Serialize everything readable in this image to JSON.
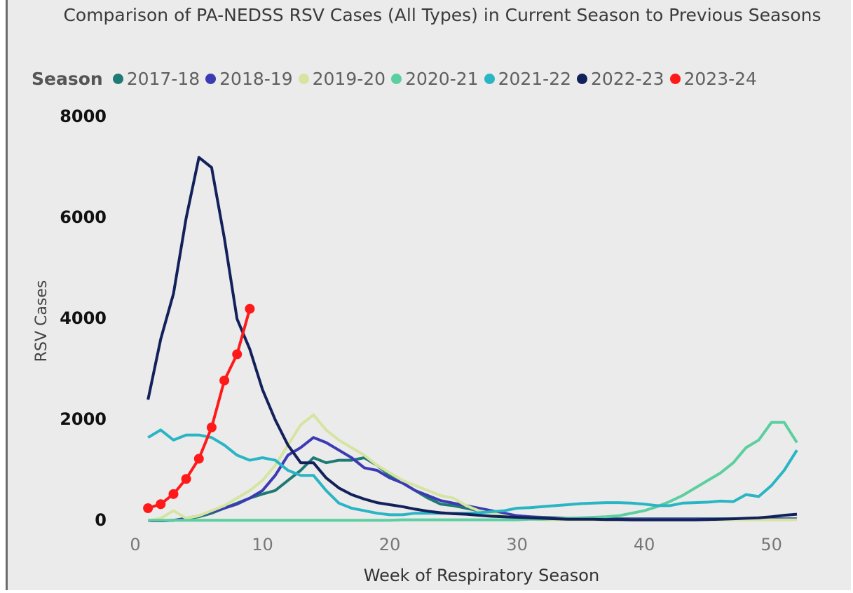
{
  "chart_data": {
    "type": "line",
    "title": "Comparison of PA-NEDSS RSV Cases (All Types) in Current Season to Previous Seasons",
    "legend_title": "Season",
    "x_label": "Week of Respiratory Season",
    "y_label": "RSV Cases",
    "xlim": [
      0,
      52
    ],
    "ylim": [
      0,
      8000
    ],
    "xticks": [
      0,
      10,
      20,
      30,
      40,
      50
    ],
    "yticks": [
      0,
      2000,
      4000,
      6000,
      8000
    ],
    "grid": false,
    "x": [
      1,
      2,
      3,
      4,
      5,
      6,
      7,
      8,
      9,
      10,
      11,
      12,
      13,
      14,
      15,
      16,
      17,
      18,
      19,
      20,
      21,
      22,
      23,
      24,
      25,
      26,
      27,
      28,
      29,
      30,
      31,
      32,
      33,
      34,
      35,
      36,
      37,
      38,
      39,
      40,
      41,
      42,
      43,
      44,
      45,
      46,
      47,
      48,
      49,
      50,
      51,
      52
    ],
    "series": [
      {
        "name": "2017-18",
        "color": "#1f7a74",
        "values": [
          0,
          0,
          10,
          40,
          80,
          150,
          250,
          350,
          450,
          530,
          600,
          800,
          1000,
          1250,
          1150,
          1200,
          1200,
          1250,
          1100,
          900,
          750,
          600,
          450,
          330,
          300,
          250,
          200,
          160,
          130,
          100,
          80,
          70,
          60,
          50,
          50,
          40,
          40,
          40,
          40,
          40,
          40,
          40,
          40,
          40,
          40,
          40,
          40,
          40,
          40,
          40,
          40,
          40
        ]
      },
      {
        "name": "2018-19",
        "color": "#3b3bb3",
        "values": [
          0,
          0,
          10,
          50,
          100,
          180,
          250,
          330,
          450,
          600,
          900,
          1300,
          1450,
          1650,
          1550,
          1400,
          1250,
          1050,
          1000,
          850,
          750,
          600,
          500,
          400,
          350,
          300,
          250,
          200,
          150,
          100,
          80,
          60,
          50,
          40,
          30,
          30,
          30,
          30,
          30,
          30,
          30,
          30,
          30,
          30,
          30,
          30,
          30,
          30,
          30,
          30,
          30,
          30
        ]
      },
      {
        "name": "2019-20",
        "color": "#d6e4a2",
        "values": [
          0,
          50,
          200,
          50,
          100,
          200,
          300,
          450,
          600,
          800,
          1100,
          1500,
          1900,
          2100,
          1800,
          1600,
          1450,
          1300,
          1100,
          950,
          800,
          700,
          600,
          500,
          450,
          300,
          200,
          150,
          100,
          50,
          30,
          20,
          20,
          20,
          20,
          20,
          20,
          20,
          20,
          20,
          20,
          20,
          20,
          20,
          20,
          20,
          20,
          20,
          20,
          20,
          20,
          20
        ]
      },
      {
        "name": "2020-21",
        "color": "#5ccfa0",
        "values": [
          10,
          10,
          10,
          10,
          10,
          10,
          10,
          10,
          10,
          10,
          10,
          10,
          10,
          10,
          10,
          10,
          10,
          10,
          10,
          10,
          20,
          20,
          20,
          20,
          20,
          20,
          20,
          20,
          20,
          20,
          30,
          30,
          40,
          50,
          60,
          70,
          80,
          100,
          150,
          200,
          280,
          380,
          500,
          650,
          800,
          950,
          1150,
          1450,
          1600,
          1950,
          1950,
          1550
        ]
      },
      {
        "name": "2021-22",
        "color": "#2ab5c4",
        "values": [
          1650,
          1800,
          1600,
          1700,
          1700,
          1650,
          1500,
          1300,
          1200,
          1250,
          1200,
          1000,
          900,
          900,
          600,
          350,
          250,
          200,
          150,
          120,
          120,
          150,
          150,
          150,
          150,
          150,
          160,
          180,
          200,
          250,
          260,
          280,
          300,
          320,
          340,
          350,
          360,
          360,
          350,
          330,
          300,
          300,
          350,
          360,
          370,
          390,
          380,
          520,
          480,
          700,
          1000,
          1400
        ]
      },
      {
        "name": "2022-23",
        "color": "#13215a",
        "values": [
          2400,
          3600,
          4500,
          6000,
          7200,
          7000,
          5600,
          4000,
          3400,
          2600,
          2000,
          1500,
          1150,
          1150,
          850,
          650,
          520,
          430,
          360,
          320,
          280,
          230,
          190,
          160,
          140,
          130,
          110,
          90,
          80,
          70,
          60,
          50,
          40,
          30,
          30,
          30,
          25,
          25,
          20,
          20,
          20,
          20,
          20,
          20,
          25,
          30,
          40,
          50,
          60,
          80,
          110,
          130
        ]
      },
      {
        "name": "2023-24",
        "color": "#ff1a1a",
        "markers": true,
        "values": [
          250,
          330,
          530,
          830,
          1230,
          1850,
          2780,
          3300,
          4200,
          null,
          null,
          null,
          null,
          null,
          null,
          null,
          null,
          null,
          null,
          null,
          null,
          null,
          null,
          null,
          null,
          null,
          null,
          null,
          null,
          null,
          null,
          null,
          null,
          null,
          null,
          null,
          null,
          null,
          null,
          null,
          null,
          null,
          null,
          null,
          null,
          null,
          null,
          null,
          null,
          null,
          null,
          null
        ]
      }
    ]
  }
}
